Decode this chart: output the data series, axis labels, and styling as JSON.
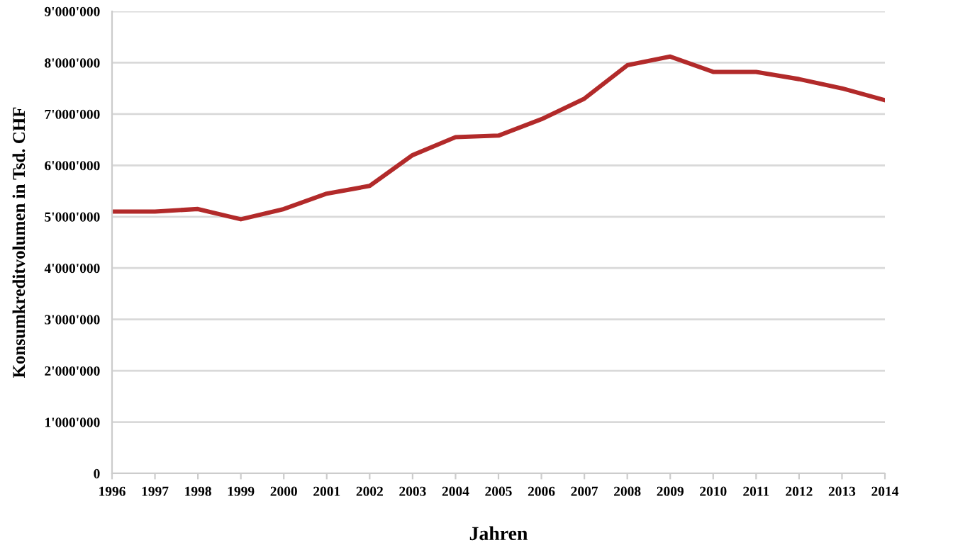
{
  "chart_data": {
    "type": "line",
    "xlabel": "Jahren",
    "ylabel": "Konsumkreditvolumen in Tsd. CHF",
    "x": [
      1996,
      1997,
      1998,
      1999,
      2000,
      2001,
      2002,
      2003,
      2004,
      2005,
      2006,
      2007,
      2008,
      2009,
      2010,
      2011,
      2012,
      2013,
      2014
    ],
    "series": [
      {
        "color": "#b22a2a",
        "values": [
          5100000,
          5100000,
          5150000,
          4950000,
          5150000,
          5450000,
          5600000,
          6200000,
          6550000,
          6580000,
          6900000,
          7300000,
          7950000,
          8120000,
          7820000,
          7820000,
          7680000,
          7500000,
          7270000
        ]
      }
    ],
    "xlim": [
      1996,
      2014
    ],
    "xticks": [
      1996,
      1997,
      1998,
      1999,
      2000,
      2001,
      2002,
      2003,
      2004,
      2005,
      2006,
      2007,
      2008,
      2009,
      2010,
      2011,
      2012,
      2013,
      2014
    ],
    "ylim": [
      0,
      9000000
    ],
    "yticks": [
      0,
      {
        "value": 1000000,
        "label": "1'000'000"
      },
      {
        "value": 2000000,
        "label": "2'000'000"
      },
      {
        "value": 3000000,
        "label": "3'000'000"
      },
      {
        "value": 4000000,
        "label": "4'000'000"
      },
      {
        "value": 5000000,
        "label": "5'000'000"
      },
      {
        "value": 6000000,
        "label": "6'000'000"
      },
      {
        "value": 7000000,
        "label": "7'000'000"
      },
      {
        "value": 8000000,
        "label": "8'000'000"
      },
      {
        "value": 9000000,
        "label": "9'000'000"
      }
    ],
    "grid": "y",
    "marker": "none",
    "line_style": "solid"
  }
}
